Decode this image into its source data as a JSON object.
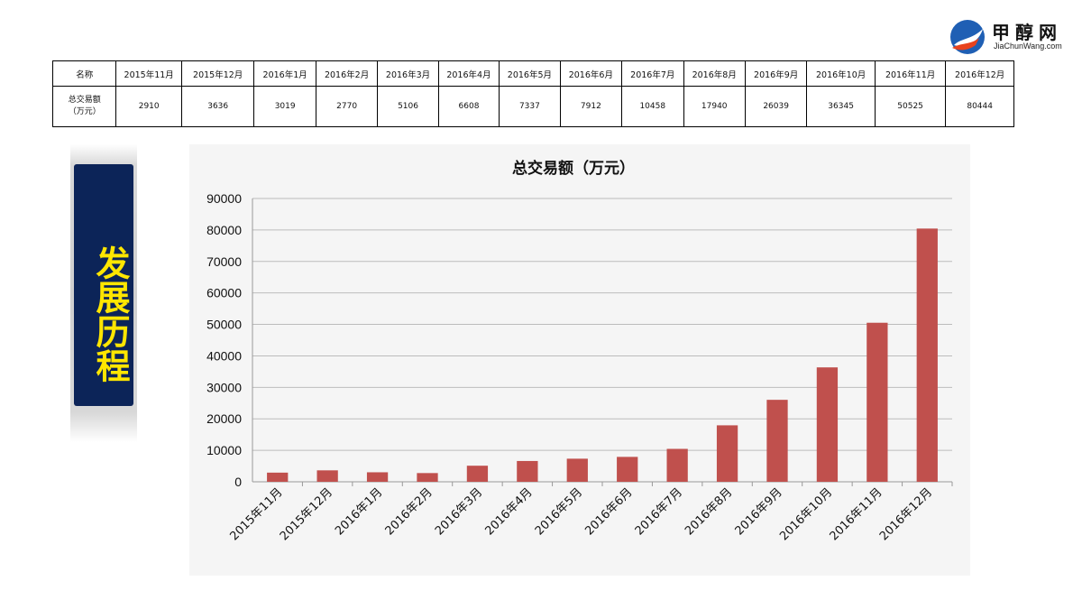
{
  "logo": {
    "name_cn": "甲醇网",
    "name_en": "JiaChunWang.com",
    "colors": [
      "#1f5fb4",
      "#e8431e"
    ]
  },
  "table": {
    "header_label": "名称",
    "row_label_line1": "总交易额",
    "row_label_line2": "（万元）",
    "months": [
      "2015年11月",
      "2015年12月",
      "2016年1月",
      "2016年2月",
      "2016年3月",
      "2016年4月",
      "2016年5月",
      "2016年6月",
      "2016年7月",
      "2016年8月",
      "2016年9月",
      "2016年10月",
      "2016年11月",
      "2016年12月"
    ],
    "values": [
      "2910",
      "3636",
      "3019",
      "2770",
      "5106",
      "6608",
      "7337",
      "7912",
      "10458",
      "17940",
      "26039",
      "36345",
      "50525",
      "80444"
    ]
  },
  "banner": {
    "text": "发展历程",
    "bg_color": "#0c2458",
    "text_color": "#ffe600"
  },
  "chart_data": {
    "type": "bar",
    "title": "总交易额（万元）",
    "categories": [
      "2015年11月",
      "2015年12月",
      "2016年1月",
      "2016年2月",
      "2016年3月",
      "2016年4月",
      "2016年5月",
      "2016年6月",
      "2016年7月",
      "2016年8月",
      "2016年9月",
      "2016年10月",
      "2016年11月",
      "2016年12月"
    ],
    "values": [
      2910,
      3636,
      3019,
      2770,
      5106,
      6608,
      7337,
      7912,
      10458,
      17940,
      26039,
      36345,
      50525,
      80444
    ],
    "ylim": [
      0,
      90000
    ],
    "yticks": [
      0,
      10000,
      20000,
      30000,
      40000,
      50000,
      60000,
      70000,
      80000,
      90000
    ],
    "grid": true,
    "legend": false,
    "bar_color": "#c0504d",
    "xlabel": "",
    "ylabel": ""
  }
}
